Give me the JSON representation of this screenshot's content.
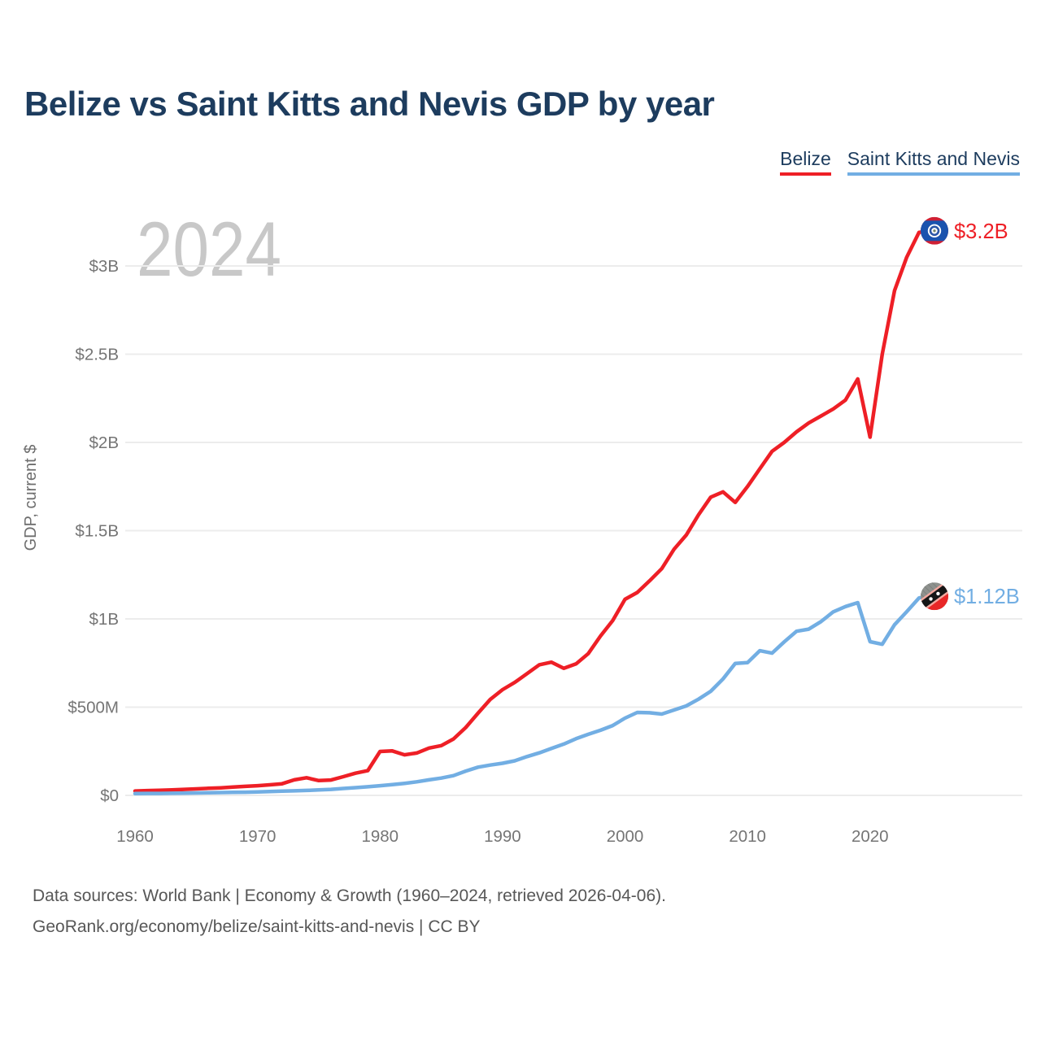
{
  "title": "Belize vs Saint Kitts and Nevis GDP by year",
  "legend": [
    {
      "label": "Belize",
      "color": "#ee1f26"
    },
    {
      "label": "Saint Kitts and Nevis",
      "color": "#72aee3"
    }
  ],
  "watermark": "2024",
  "footer": {
    "line1": "Data sources: World Bank | Economy & Growth (1960–2024, retrieved 2026-04-06).",
    "line2": "GeoRank.org/economy/belize/saint-kitts-and-nevis | CC BY"
  },
  "colors": {
    "title_navy": "#1d3c5e",
    "tick_gray": "#757575",
    "axis_title_gray": "#6e6e6e",
    "gridline": "#ececec",
    "watermark_gray": "#c8c8c8",
    "belize_red": "#ee1f26",
    "skn_blue": "#72aee3"
  },
  "chart_data": {
    "type": "line",
    "title": "Belize vs Saint Kitts and Nevis GDP by year",
    "xlabel": "",
    "ylabel": "GDP, current $",
    "xlim": [
      1960,
      2024
    ],
    "ylim_billion": [
      0,
      3.3
    ],
    "grid": "horizontal",
    "legend_position": "top-right",
    "x_ticks": [
      {
        "v": 1960,
        "label": "1960"
      },
      {
        "v": 1970,
        "label": "1970"
      },
      {
        "v": 1980,
        "label": "1980"
      },
      {
        "v": 1990,
        "label": "1990"
      },
      {
        "v": 2000,
        "label": "2000"
      },
      {
        "v": 2010,
        "label": "2010"
      },
      {
        "v": 2020,
        "label": "2020"
      }
    ],
    "y_ticks": [
      {
        "v": 0,
        "label": "$0"
      },
      {
        "v": 0.5,
        "label": "$500M"
      },
      {
        "v": 1,
        "label": "$1B"
      },
      {
        "v": 1.5,
        "label": "$1.5B"
      },
      {
        "v": 2,
        "label": "$2B"
      },
      {
        "v": 2.5,
        "label": "$2.5B"
      },
      {
        "v": 3,
        "label": "$3B"
      }
    ],
    "x_start": 1960,
    "x_step": 1,
    "series": [
      {
        "name": "Belize",
        "color": "#ee1f26",
        "end_label": "$3.2B",
        "flag": "belize",
        "values_billion": [
          0.025,
          0.027,
          0.029,
          0.031,
          0.034,
          0.037,
          0.04,
          0.043,
          0.047,
          0.051,
          0.055,
          0.06,
          0.066,
          0.088,
          0.1,
          0.084,
          0.087,
          0.106,
          0.126,
          0.14,
          0.249,
          0.252,
          0.23,
          0.24,
          0.268,
          0.282,
          0.32,
          0.385,
          0.466,
          0.544,
          0.599,
          0.64,
          0.69,
          0.74,
          0.755,
          0.72,
          0.745,
          0.803,
          0.903,
          0.991,
          1.111,
          1.15,
          1.215,
          1.285,
          1.395,
          1.475,
          1.59,
          1.69,
          1.72,
          1.66,
          1.75,
          1.85,
          1.95,
          2.0,
          2.06,
          2.11,
          2.15,
          2.19,
          2.24,
          2.36,
          2.03,
          2.5,
          2.86,
          3.05,
          3.19
        ]
      },
      {
        "name": "Saint Kitts and Nevis",
        "color": "#72aee3",
        "end_label": "$1.12B",
        "flag": "saint-kitts-and-nevis",
        "values_billion": [
          0.01,
          0.011,
          0.011,
          0.012,
          0.013,
          0.014,
          0.015,
          0.016,
          0.017,
          0.018,
          0.02,
          0.022,
          0.024,
          0.026,
          0.028,
          0.031,
          0.034,
          0.039,
          0.044,
          0.049,
          0.055,
          0.061,
          0.068,
          0.077,
          0.088,
          0.098,
          0.112,
          0.138,
          0.16,
          0.172,
          0.182,
          0.196,
          0.22,
          0.241,
          0.266,
          0.291,
          0.321,
          0.346,
          0.369,
          0.396,
          0.438,
          0.47,
          0.468,
          0.461,
          0.484,
          0.507,
          0.545,
          0.59,
          0.66,
          0.748,
          0.752,
          0.82,
          0.806,
          0.87,
          0.93,
          0.942,
          0.985,
          1.04,
          1.07,
          1.092,
          0.871,
          0.856,
          0.967,
          1.041,
          1.119
        ]
      }
    ]
  }
}
